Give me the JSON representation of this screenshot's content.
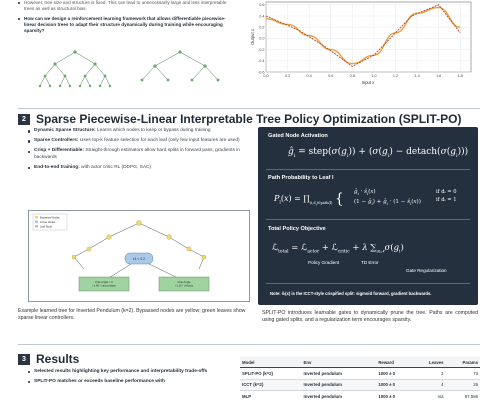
{
  "top": {
    "bullets": [
      {
        "text": "However, tree size and structure is fixed. This can lead to unnecessarily large and less interpretable trees as well as structural bias.",
        "style": "gray"
      },
      {
        "text": "How can we design a reinforcement learning framework that allows differentiable piecewise-linear decision trees to adapt their structure dynamically during training while encouraging sparsity?",
        "style": "bold"
      }
    ],
    "plot": {
      "ylabel": "Output x",
      "xlabel": "Input x",
      "x_ticks": [
        "0.0",
        "0.2",
        "0.4",
        "0.6",
        "0.8",
        "1.0",
        "1.2",
        "1.4",
        "1.6",
        "1.8"
      ],
      "y_ticks": [
        "0.6",
        "0.4",
        "0.2",
        "0.0",
        "-0.2",
        "-0.4",
        "-0.6"
      ],
      "colors": {
        "smooth": "#e8a23a",
        "piecewise": "#c0392b"
      }
    }
  },
  "chart_data": {
    "type": "line",
    "title": "",
    "xlabel": "Input x",
    "ylabel": "Output x",
    "xlim": [
      0,
      1.9
    ],
    "ylim": [
      -0.6,
      0.65
    ],
    "series": [
      {
        "x": [
          0.0,
          0.2,
          0.4,
          0.6,
          0.8,
          1.0,
          1.2,
          1.4,
          1.6,
          1.8
        ],
        "values": [
          0.35,
          0.25,
          0.05,
          -0.2,
          -0.45,
          -0.3,
          0.1,
          0.45,
          0.55,
          0.2
        ]
      },
      {
        "x": [
          0.0,
          0.3,
          0.55,
          0.8,
          1.0,
          1.35,
          1.6,
          1.8
        ],
        "values": [
          0.4,
          0.15,
          -0.15,
          -0.5,
          -0.3,
          0.4,
          0.6,
          0.1
        ]
      }
    ]
  },
  "section2": {
    "number": "2",
    "title": "Sparse Piecewise-Linear Interpretable Tree Policy Optimization (SPLIT-PO)",
    "bullets": [
      {
        "head": "Dynamic Sparse Structure:",
        "text": " Learns which nodes to keep or bypass during training"
      },
      {
        "head": "Sparse Controllers:",
        "text": " Uses top-k feature selection for each leaf (only few input features are used)"
      },
      {
        "head": "Crisp + Differentiable:",
        "text": " Straight-through estimators allow hard splits in forward pass, gradients in backwards"
      },
      {
        "head": "End-to-end training:",
        "text": " with actor critic RL (DDPG, SAC)"
      }
    ],
    "tree": {
      "legend": [
        "Bypassed Nodes",
        "Active Nodes",
        "Leaf Node"
      ],
      "root": "x1 < 0.2",
      "leaf_left": "Pole Angle > 0\n+1.48 * cart position",
      "leaf_right": "Pole Angle\n+1.16 * velocity"
    },
    "figure_caption": "Example learned tree for Inverted Pendulum (k=2). Bypassed nodes are yellow; green leaves show sparse linear controllers.",
    "panel": {
      "gated_title": "Gated Node Activation",
      "path_title": "Path Probability to Leaf l",
      "obj_title": "Total Policy Objective",
      "note": "Note: ŝₗ(x) is the ICCT-style crispified split: sigmoid forward, gradient backwards.",
      "labels": {
        "actor": "Policy Gradient",
        "critic": "TD Error",
        "reg": "Gate Regularization",
        "case1": "if dᵢ = 0",
        "case2": "if dᵢ = 1"
      }
    },
    "panel_caption": "SPLIT-PO introduces learnable gates to dynamically prune the tree. Paths are computed using gated splits, and a regularization term encourages sparsity."
  },
  "section3": {
    "number": "3",
    "title": "Results",
    "bullets": [
      "Selected results highlighting key performance and interpretability trade-offs",
      "SPLIT-PO matches or exceeds baseline performance with"
    ],
    "table": {
      "headers": [
        "Model",
        "Env",
        "Reward",
        "Leaves",
        "Params"
      ],
      "rows": [
        [
          "SPLIT-PO (k=2)",
          "Inverted pendulum",
          "1000 ± 0",
          "2",
          "73"
        ],
        [
          "ICCT (k=2)",
          "Inverted pendulum",
          "1000 ± 0",
          "4",
          "26"
        ],
        [
          "MLP",
          "Inverted pendulum",
          "1000 ± 0",
          "n/a",
          "67,586"
        ]
      ]
    }
  }
}
